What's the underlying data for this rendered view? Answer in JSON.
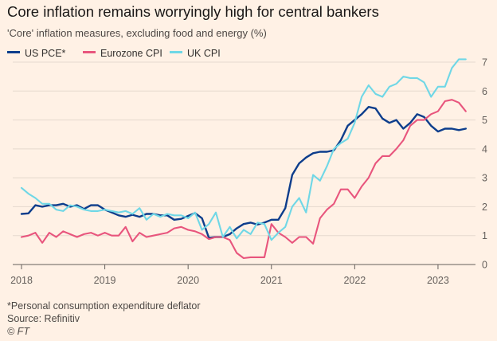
{
  "chart_data": {
    "type": "line",
    "title": "Core inflation remains worryingly high for central bankers",
    "subtitle": "'Core' inflation measures, excluding food and energy (%)",
    "ylim": [
      0,
      7
    ],
    "yticks": [
      "0",
      "1",
      "2",
      "3",
      "4",
      "5",
      "6",
      "7"
    ],
    "xlim": [
      2018,
      2023.45
    ],
    "xticks": [
      {
        "value": 2018,
        "label": "2018"
      },
      {
        "value": 2019,
        "label": "2019"
      },
      {
        "value": 2020,
        "label": "2020"
      },
      {
        "value": 2021,
        "label": "2021"
      },
      {
        "value": 2022,
        "label": "2022"
      },
      {
        "value": 2023,
        "label": "2023"
      }
    ],
    "x_start": 2018.0,
    "x_step_months": 1,
    "legend_position": "top-left",
    "series": [
      {
        "name": "US PCE*",
        "color": "#0d3d8c",
        "values": [
          1.75,
          1.77,
          2.05,
          2.0,
          2.05,
          2.05,
          2.1,
          2.0,
          2.05,
          1.92,
          2.05,
          2.05,
          1.9,
          1.8,
          1.7,
          1.65,
          1.72,
          1.65,
          1.75,
          1.75,
          1.7,
          1.7,
          1.55,
          1.58,
          1.68,
          1.78,
          1.6,
          0.92,
          0.95,
          0.95,
          1.05,
          1.25,
          1.4,
          1.45,
          1.38,
          1.45,
          1.55,
          1.55,
          1.95,
          3.1,
          3.5,
          3.7,
          3.85,
          3.9,
          3.9,
          3.95,
          4.3,
          4.8,
          5.0,
          5.2,
          5.45,
          5.4,
          5.05,
          4.9,
          5.0,
          4.7,
          4.9,
          5.2,
          5.1,
          4.8,
          4.6,
          4.7,
          4.7,
          4.65,
          4.7
        ]
      },
      {
        "name": "Eurozone CPI",
        "color": "#e8557d",
        "values": [
          0.95,
          1.0,
          1.1,
          0.75,
          1.1,
          0.95,
          1.15,
          1.05,
          0.95,
          1.05,
          1.1,
          1.0,
          1.1,
          1.0,
          1.0,
          1.3,
          0.8,
          1.1,
          0.95,
          1.0,
          1.05,
          1.1,
          1.25,
          1.3,
          1.2,
          1.15,
          1.05,
          0.88,
          0.95,
          0.95,
          0.85,
          0.4,
          0.22,
          0.25,
          0.25,
          0.25,
          1.4,
          1.1,
          0.95,
          0.75,
          0.95,
          0.95,
          0.72,
          1.6,
          1.9,
          2.1,
          2.6,
          2.6,
          2.3,
          2.7,
          3.0,
          3.5,
          3.75,
          3.75,
          4.0,
          4.3,
          4.8,
          5.0,
          5.0,
          5.2,
          5.3,
          5.65,
          5.7,
          5.6,
          5.3
        ]
      },
      {
        "name": "UK CPI",
        "color": "#6fd7e6",
        "values": [
          2.65,
          2.45,
          2.3,
          2.1,
          2.1,
          1.9,
          1.85,
          2.05,
          2.0,
          1.9,
          1.85,
          1.85,
          1.9,
          1.85,
          1.8,
          1.85,
          1.75,
          1.95,
          1.55,
          1.75,
          1.65,
          1.75,
          1.7,
          1.7,
          1.6,
          1.8,
          1.2,
          1.4,
          1.8,
          0.95,
          1.3,
          0.9,
          1.2,
          1.05,
          1.45,
          1.4,
          0.85,
          1.1,
          1.3,
          2.0,
          2.3,
          1.8,
          3.1,
          2.9,
          3.4,
          4.0,
          4.2,
          4.35,
          4.9,
          5.8,
          6.2,
          5.9,
          5.8,
          6.15,
          6.25,
          6.5,
          6.45,
          6.45,
          6.3,
          5.8,
          6.15,
          6.15,
          6.8,
          7.1,
          7.1
        ]
      }
    ],
    "footnote": "*Personal consumption expenditure deflator",
    "source": "Source: Refinitiv",
    "credit": "© FT"
  }
}
